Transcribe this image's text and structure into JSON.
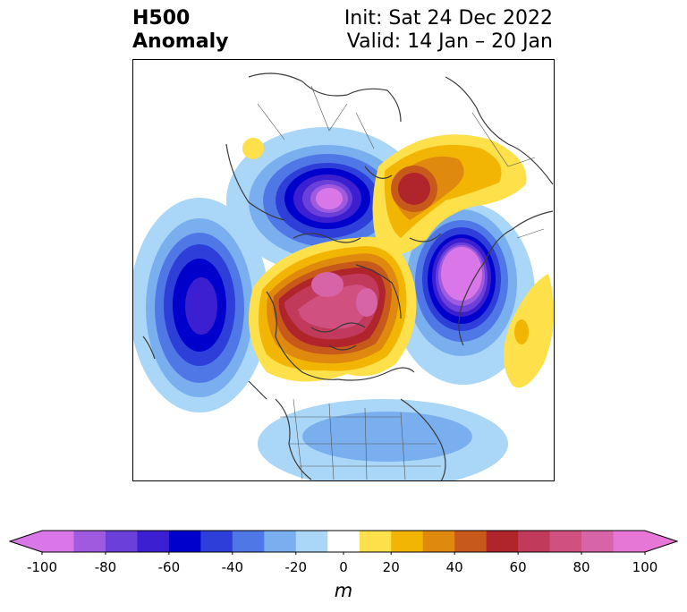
{
  "title": {
    "left_line1": "H500",
    "left_line2": "Anomaly",
    "right_line1": "Init: Sat 24 Dec 2022",
    "right_line2": "Valid: 14 Jan – 20 Jan"
  },
  "colorbar": {
    "unit": "m",
    "ticks": [
      "-100",
      "-80",
      "-60",
      "-40",
      "-20",
      "0",
      "20",
      "40",
      "60",
      "80",
      "100"
    ],
    "levels": [
      -100,
      -90,
      -80,
      -70,
      -60,
      -50,
      -40,
      -30,
      -20,
      -10,
      10,
      20,
      30,
      40,
      50,
      60,
      70,
      80,
      90,
      100
    ],
    "colors": [
      "#d977e8",
      "#9f5ae0",
      "#6b3fd9",
      "#3c1fd1",
      "#0000cc",
      "#2e3fd9",
      "#4f78e6",
      "#7aafef",
      "#aad7f7",
      "#ffffff",
      "#fde04a",
      "#f2b503",
      "#df8a0e",
      "#c75a1b",
      "#b0242b",
      "#c23a5b",
      "#d0507f",
      "#d864a8",
      "#e677d6"
    ],
    "under_color": "#d977e8",
    "over_color": "#e677d6"
  },
  "map": {
    "projection": "north-polar-stereographic",
    "field": "500 hPa geopotential height anomaly",
    "anomalies": [
      {
        "name": "ridge-arctic-canada",
        "sign": "positive",
        "peak_m": 80
      },
      {
        "name": "ridge-siberia",
        "sign": "positive",
        "peak_m": 60
      },
      {
        "name": "trough-north-atlantic",
        "sign": "negative",
        "peak_m": -90
      },
      {
        "name": "trough-north-pacific",
        "sign": "negative",
        "peak_m": -100
      },
      {
        "name": "trough-europe",
        "sign": "negative",
        "peak_m": -100
      },
      {
        "name": "ridge-east-atlantic",
        "sign": "positive",
        "peak_m": 30
      },
      {
        "name": "trough-eastern-us",
        "sign": "negative",
        "peak_m": -30
      }
    ]
  }
}
